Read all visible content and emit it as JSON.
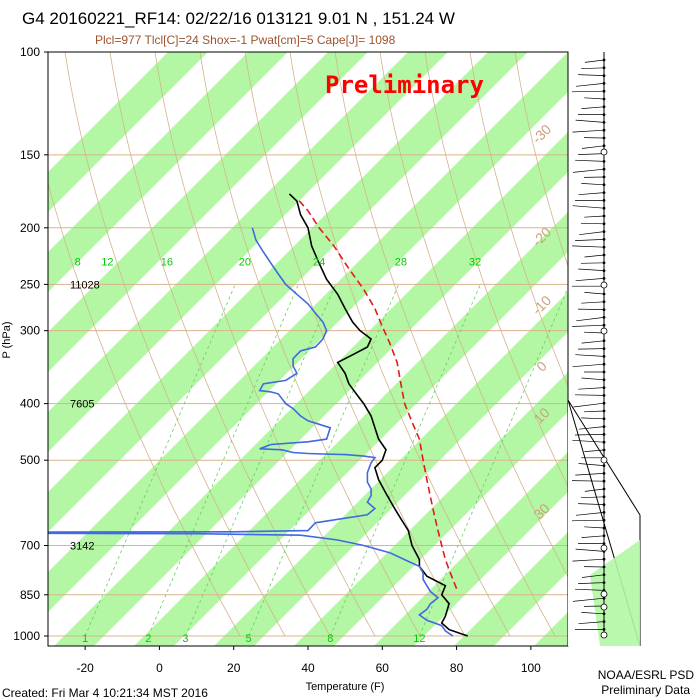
{
  "header": {
    "title": "G4 20160221_RF14: 02/22/16 013121   9.01 N , 151.24 W",
    "subtitle": "Plcl=977 Tlcl[C]=24 Shox=-1 Pwat[cm]=5 Cape[J]= 1098",
    "stamp": "Preliminary"
  },
  "footer": {
    "created": "Created: Fri Mar  4 10:21:34 MST 2016",
    "org_line1": "NOAA/ESRL PSD",
    "org_line2": "Preliminary Data"
  },
  "colors": {
    "green_band": "#b3f7a4",
    "temperature": "#000000",
    "dewpoint": "#4169e1",
    "parcel": "#e41a1c",
    "isobar": "#d9b38c",
    "mixing_ratio": "#66cc66"
  },
  "chart_data": {
    "type": "line",
    "title": "G4 20160221_RF14: 02/22/16 013121   9.01 N , 151.24 W",
    "xlabel": "Temperature (F)",
    "ylabel": "P (hPa)",
    "xlim": [
      -30,
      110
    ],
    "ylim": [
      1000,
      100
    ],
    "y_scale": "log",
    "x_ticks": [
      -20,
      0,
      20,
      40,
      60,
      80,
      100
    ],
    "y_ticks": [
      100,
      150,
      200,
      250,
      300,
      400,
      500,
      700,
      850,
      1000
    ],
    "isotherm_labels": [
      {
        "value": "-30",
        "pressure": 140
      },
      {
        "value": "-20",
        "pressure": 210
      },
      {
        "value": "-10",
        "pressure": 275
      },
      {
        "value": "0",
        "pressure": 350
      },
      {
        "value": "10",
        "pressure": 425
      },
      {
        "value": "30",
        "pressure": 620
      }
    ],
    "mixing_ratio_labels": [
      {
        "value": "8",
        "x": -22
      },
      {
        "value": "12",
        "x": -14
      },
      {
        "value": "16",
        "x": 2
      },
      {
        "value": "20",
        "x": 23
      },
      {
        "value": "24",
        "x": 43
      },
      {
        "value": "28",
        "x": 65
      },
      {
        "value": "32",
        "x": 85
      }
    ],
    "mixing_ratio_bottom_labels": [
      {
        "value": "1",
        "x": -20
      },
      {
        "value": "2",
        "x": -3
      },
      {
        "value": "3",
        "x": 7
      },
      {
        "value": "5",
        "x": 24
      },
      {
        "value": "8",
        "x": 46
      },
      {
        "value": "12",
        "x": 70
      }
    ],
    "height_labels": [
      {
        "value": "11028",
        "pressure": 250
      },
      {
        "value": "7605",
        "pressure": 400
      },
      {
        "value": "3142",
        "pressure": 700
      }
    ],
    "series": [
      {
        "key": "temperature",
        "points": [
          [
            83,
            1000
          ],
          [
            78,
            975
          ],
          [
            76,
            950
          ],
          [
            77,
            925
          ],
          [
            78,
            880
          ],
          [
            76,
            850
          ],
          [
            77,
            820
          ],
          [
            72,
            790
          ],
          [
            70,
            760
          ],
          [
            70,
            740
          ],
          [
            68,
            700
          ],
          [
            67,
            660
          ],
          [
            65,
            630
          ],
          [
            63,
            600
          ],
          [
            61,
            570
          ],
          [
            59,
            540
          ],
          [
            58,
            515
          ],
          [
            60,
            500
          ],
          [
            61,
            480
          ],
          [
            59,
            460
          ],
          [
            58,
            440
          ],
          [
            57,
            420
          ],
          [
            55,
            400
          ],
          [
            53,
            385
          ],
          [
            51,
            370
          ],
          [
            50,
            355
          ],
          [
            48,
            340
          ],
          [
            52,
            330
          ],
          [
            56,
            320
          ],
          [
            57,
            310
          ],
          [
            54,
            300
          ],
          [
            52,
            290
          ],
          [
            50,
            275
          ],
          [
            48,
            260
          ],
          [
            45,
            245
          ],
          [
            43,
            230
          ],
          [
            41,
            215
          ],
          [
            40,
            200
          ],
          [
            38,
            190
          ],
          [
            37,
            180
          ],
          [
            35,
            175
          ]
        ]
      },
      {
        "key": "dewpoint",
        "points": [
          [
            79,
            1000
          ],
          [
            77,
            980
          ],
          [
            76,
            960
          ],
          [
            72,
            940
          ],
          [
            70,
            920
          ],
          [
            72,
            900
          ],
          [
            73,
            880
          ],
          [
            75,
            860
          ],
          [
            73,
            840
          ],
          [
            72,
            820
          ],
          [
            71,
            800
          ],
          [
            71,
            780
          ],
          [
            70,
            760
          ],
          [
            66,
            740
          ],
          [
            62,
            720
          ],
          [
            55,
            700
          ],
          [
            48,
            685
          ],
          [
            38,
            672
          ],
          [
            10,
            668
          ],
          [
            -30,
            667
          ],
          [
            -30,
            664
          ],
          [
            20,
            663
          ],
          [
            40,
            660
          ],
          [
            42,
            640
          ],
          [
            56,
            620
          ],
          [
            58,
            605
          ],
          [
            56,
            590
          ],
          [
            57,
            575
          ],
          [
            57,
            560
          ],
          [
            56,
            545
          ],
          [
            56,
            525
          ],
          [
            57,
            505
          ],
          [
            58,
            495
          ],
          [
            55,
            492
          ],
          [
            50,
            489
          ],
          [
            44,
            488
          ],
          [
            40,
            487
          ],
          [
            36,
            485
          ],
          [
            33,
            480
          ],
          [
            27,
            478
          ],
          [
            30,
            470
          ],
          [
            40,
            465
          ],
          [
            45,
            460
          ],
          [
            46,
            440
          ],
          [
            40,
            428
          ],
          [
            38,
            420
          ],
          [
            36,
            408
          ],
          [
            34,
            400
          ],
          [
            32,
            385
          ],
          [
            30,
            382
          ],
          [
            27,
            380
          ],
          [
            28,
            370
          ],
          [
            34,
            365
          ],
          [
            37,
            355
          ],
          [
            36,
            345
          ],
          [
            36,
            335
          ],
          [
            38,
            325
          ],
          [
            42,
            320
          ],
          [
            44,
            310
          ],
          [
            45,
            300
          ],
          [
            44,
            290
          ],
          [
            42,
            280
          ],
          [
            40,
            270
          ],
          [
            37,
            260
          ],
          [
            34,
            250
          ],
          [
            32,
            240
          ],
          [
            30,
            230
          ],
          [
            28,
            220
          ],
          [
            26,
            210
          ],
          [
            25,
            200
          ]
        ]
      },
      {
        "key": "parcel",
        "points": [
          [
            80,
            830
          ],
          [
            79,
            800
          ],
          [
            78,
            770
          ],
          [
            77,
            740
          ],
          [
            76,
            700
          ],
          [
            75,
            660
          ],
          [
            74,
            620
          ],
          [
            73,
            580
          ],
          [
            72,
            540
          ],
          [
            71,
            500
          ],
          [
            70,
            460
          ],
          [
            68,
            430
          ],
          [
            66,
            400
          ],
          [
            65,
            370
          ],
          [
            64,
            340
          ],
          [
            62,
            315
          ],
          [
            60,
            295
          ],
          [
            58,
            275
          ],
          [
            55,
            255
          ],
          [
            51,
            235
          ],
          [
            47,
            215
          ],
          [
            43,
            200
          ],
          [
            40,
            187
          ],
          [
            37,
            178
          ]
        ]
      }
    ]
  }
}
